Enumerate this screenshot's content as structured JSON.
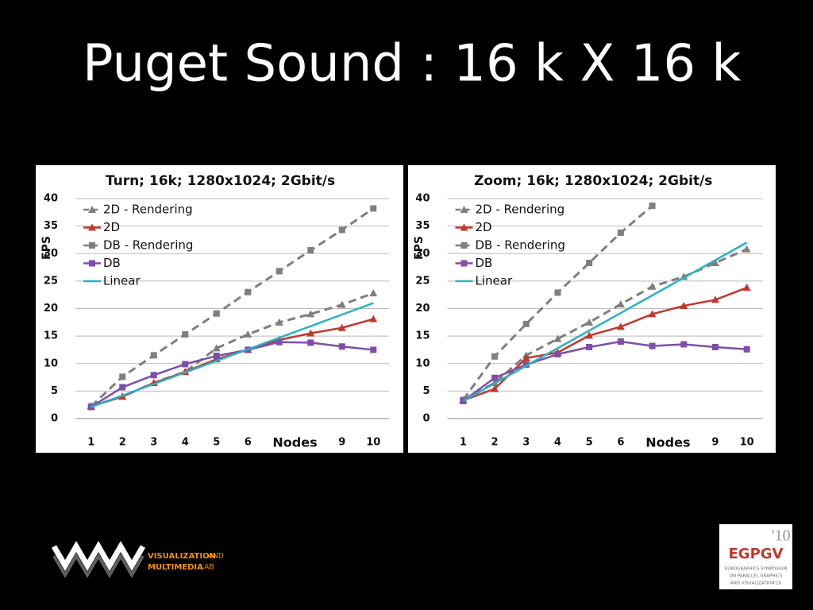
{
  "title": "Puget Sound : 16 k X 16 k",
  "chart_data": [
    {
      "type": "line",
      "title": "Turn; 16k; 1280x1024; 2Gbit/s",
      "x_label": "Nodes",
      "y_label": "FPS",
      "categories": [
        "1",
        "2",
        "3",
        "4",
        "5",
        "6",
        null,
        null,
        "9",
        "10"
      ],
      "ylim": [
        0,
        40
      ],
      "yticks": [
        0,
        5,
        10,
        15,
        20,
        25,
        30,
        35,
        40
      ],
      "grid": true,
      "legend": "top-left",
      "series": [
        {
          "name": "2D - Rendering",
          "color": "#7f7f7f",
          "dash": true,
          "marker": "triangle",
          "values": [
            2.3,
            4.0,
            6.5,
            8.5,
            12.8,
            15.3,
            17.5,
            19.0,
            20.7,
            22.8
          ]
        },
        {
          "name": "2D",
          "color": "#c0392b",
          "dash": false,
          "marker": "triangle",
          "values": [
            2.2,
            4.0,
            6.5,
            8.5,
            10.8,
            12.5,
            14.3,
            15.5,
            16.5,
            18.1
          ]
        },
        {
          "name": "DB - Rendering",
          "color": "#7f7f7f",
          "dash": true,
          "marker": "square",
          "values": [
            2.2,
            7.6,
            11.5,
            15.3,
            19.1,
            23.0,
            26.8,
            30.6,
            34.3,
            38.2
          ]
        },
        {
          "name": "DB",
          "color": "#7d4fa8",
          "dash": false,
          "marker": "square",
          "values": [
            2.1,
            5.7,
            7.9,
            9.9,
            11.4,
            12.5,
            13.9,
            13.8,
            13.1,
            12.5
          ]
        },
        {
          "name": "Linear",
          "color": "#2ab0c5",
          "dash": false,
          "marker": null,
          "values": [
            2.1,
            4.2,
            6.3,
            8.4,
            10.5,
            12.6,
            14.7,
            16.8,
            18.9,
            21.0
          ]
        }
      ]
    },
    {
      "type": "line",
      "title": "Zoom; 16k; 1280x1024; 2Gbit/s",
      "x_label": "Nodes",
      "y_label": "FPS",
      "categories": [
        "1",
        "2",
        "3",
        "4",
        "5",
        "6",
        null,
        null,
        "9",
        "10"
      ],
      "ylim": [
        0,
        40
      ],
      "yticks": [
        0,
        5,
        10,
        15,
        20,
        25,
        30,
        35,
        40
      ],
      "grid": true,
      "legend": "top-left",
      "series": [
        {
          "name": "2D - Rendering",
          "color": "#7f7f7f",
          "dash": true,
          "marker": "triangle",
          "values": [
            3.4,
            6.5,
            11.5,
            14.5,
            17.5,
            20.8,
            24.0,
            25.8,
            28.3,
            30.8
          ]
        },
        {
          "name": "2D",
          "color": "#c0392b",
          "dash": false,
          "marker": "triangle",
          "values": [
            3.3,
            5.4,
            11.0,
            12.0,
            15.1,
            16.7,
            19.0,
            20.5,
            21.6,
            23.8
          ]
        },
        {
          "name": "DB - Rendering",
          "color": "#7f7f7f",
          "dash": true,
          "marker": "square",
          "values": [
            3.4,
            11.3,
            17.2,
            22.9,
            28.3,
            33.8,
            38.7,
            null,
            null,
            null
          ]
        },
        {
          "name": "DB",
          "color": "#7d4fa8",
          "dash": false,
          "marker": "square",
          "values": [
            3.2,
            7.4,
            9.8,
            11.7,
            13.0,
            14.0,
            13.2,
            13.5,
            13.0,
            12.6
          ]
        },
        {
          "name": "Linear",
          "color": "#2ab0c5",
          "dash": false,
          "marker": null,
          "values": [
            3.2,
            6.4,
            9.6,
            12.8,
            16.0,
            19.2,
            22.4,
            25.6,
            28.8,
            32.0
          ]
        }
      ]
    }
  ],
  "logos": {
    "lab_line1": "VISUALIZATION",
    "lab_and": "AND",
    "lab_line2": "MULTIMEDIA",
    "lab_lab": "LAB",
    "egpgv": "EGPGV",
    "egpgv_year": "'10",
    "egpgv_sub1": "EUROGRAPHICS SYMPOSIUM",
    "egpgv_sub2": "ON PARALLEL GRAPHICS",
    "egpgv_sub3": "AND VISUALIZATION'10"
  }
}
